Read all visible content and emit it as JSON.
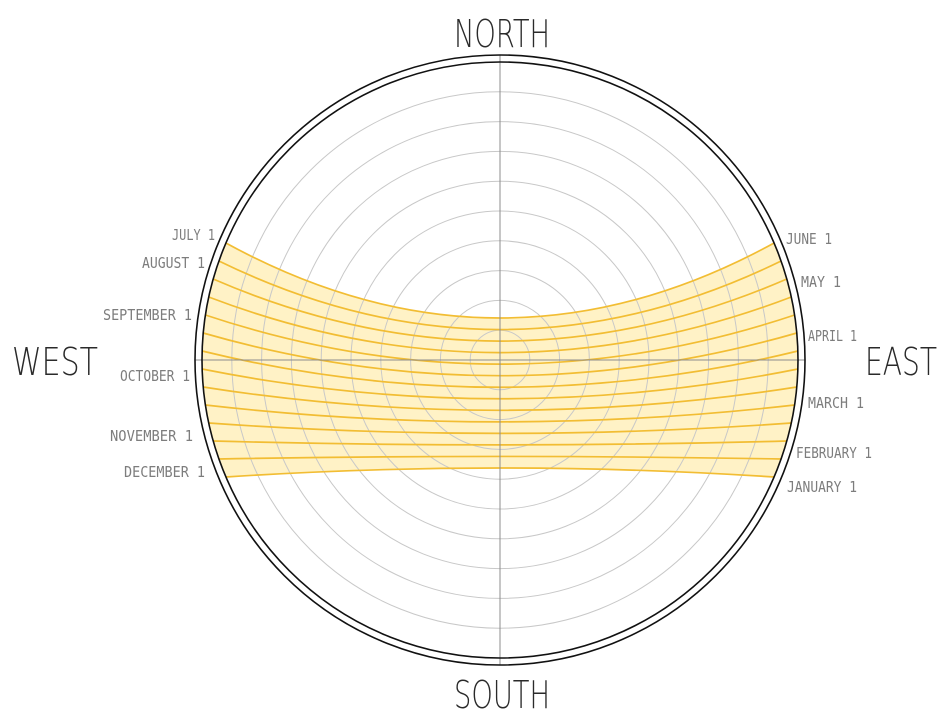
{
  "cardinals": {
    "north": "NORTH",
    "south": "SOUTH",
    "east": "EAST",
    "west": "WEST"
  },
  "sunpath": {
    "grid_rings": 10,
    "band_fill": "#fff2c6",
    "curve_color": "#f2bd33",
    "grid_color": "#c8c8c8",
    "axis_color": "#8c8c8c",
    "outline_color": "#111111",
    "curve_count": 14
  },
  "labels_east": [
    {
      "id": "june",
      "text": "JUNE 1"
    },
    {
      "id": "may",
      "text": "MAY 1"
    },
    {
      "id": "april",
      "text": "APRIL 1"
    },
    {
      "id": "march",
      "text": "MARCH 1"
    },
    {
      "id": "february",
      "text": "FEBRUARY 1"
    },
    {
      "id": "january",
      "text": "JANUARY 1"
    }
  ],
  "labels_west": [
    {
      "id": "july",
      "text": "JULY 1"
    },
    {
      "id": "august",
      "text": "AUGUST 1"
    },
    {
      "id": "september",
      "text": "SEPTEMBER 1"
    },
    {
      "id": "october",
      "text": "OCTOBER 1"
    },
    {
      "id": "november",
      "text": "NOVEMBER 1"
    },
    {
      "id": "december",
      "text": "DECEMBER 1"
    }
  ]
}
